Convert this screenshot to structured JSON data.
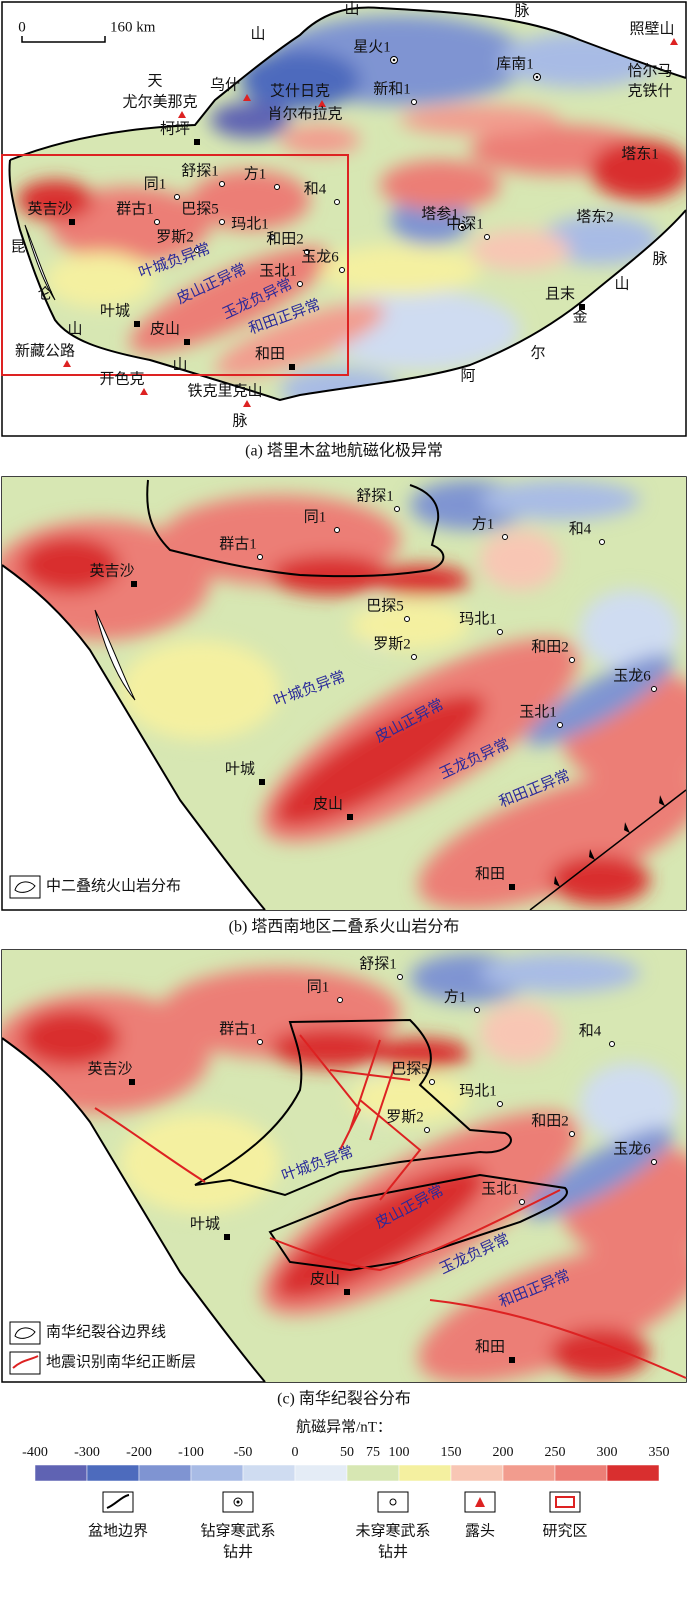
{
  "panels": [
    {
      "caption": "(a) 塔里木盆地航磁化极异常",
      "scale": {
        "zero": "0",
        "length": "160 km"
      },
      "labels": [
        "星火1",
        "新和1",
        "库南1",
        "照壁山",
        "恰尔马",
        "克铁什",
        "乌什",
        "艾什日克",
        "尤尔美那克",
        "肖尔布拉克",
        "柯坪",
        "舒探1",
        "方1",
        "同1",
        "和4",
        "塔东1",
        "英吉沙",
        "群古1",
        "巴探5",
        "塔参1",
        "塔东2",
        "玛北1",
        "罗斯2",
        "和田2",
        "中深1",
        "玉龙6",
        "叶城负异常",
        "皮山正异常",
        "玉北1",
        "玉龙负异常",
        "叶城",
        "和田正异常",
        "且末",
        "皮山",
        "新藏公路",
        "和田",
        "开色克",
        "铁克里克山",
        "天",
        "山",
        "山",
        "脉",
        "昆",
        "仑",
        "山",
        "山",
        "脉",
        "阿",
        "尔",
        "金",
        "山",
        "脉"
      ]
    },
    {
      "caption": "(b) 塔西南地区二叠系火山岩分布",
      "legend": [
        "中二叠统火山岩分布"
      ],
      "labels": [
        "舒探1",
        "同1",
        "方1",
        "和4",
        "群古1",
        "英吉沙",
        "巴探5",
        "玛北1",
        "罗斯2",
        "和田2",
        "玉龙6",
        "叶城负异常",
        "皮山正异常",
        "玉北1",
        "玉龙负异常",
        "叶城",
        "和田正异常",
        "皮山",
        "和田"
      ]
    },
    {
      "caption": "(c) 南华纪裂谷分布",
      "legend": [
        "南华纪裂谷边界线",
        "地震识别南华纪正断层"
      ],
      "labels": [
        "舒探1",
        "同1",
        "方1",
        "群古1",
        "和4",
        "英吉沙",
        "巴探5",
        "玛北1",
        "罗斯2",
        "和田2",
        "玉龙6",
        "叶城负异常",
        "玉北1",
        "叶城",
        "皮山正异常",
        "玉龙负异常",
        "和田正异常",
        "皮山",
        "和田"
      ]
    }
  ],
  "colorbar": {
    "title": "航磁异常/nT：",
    "ticks": [
      -400,
      -300,
      -200,
      -100,
      -50,
      0,
      50,
      75,
      100,
      150,
      200,
      250,
      300,
      350
    ],
    "colors": [
      "#5f63b3",
      "#4d6bbd",
      "#7f94d2",
      "#a8bbe5",
      "#cfdcf1",
      "#e4ecf6",
      "#d7e7b3",
      "#f4f0a0",
      "#f8c6b4",
      "#f29c8e",
      "#ec7e76",
      "#d92f2f"
    ]
  },
  "legend": [
    {
      "lines": [
        "盆地边界"
      ]
    },
    {
      "lines": [
        "钻穿寒武系",
        "钻井"
      ]
    },
    {
      "lines": [
        "未穿寒武系",
        "钻井"
      ]
    },
    {
      "lines": [
        "露头"
      ]
    },
    {
      "lines": [
        "研究区"
      ]
    }
  ]
}
